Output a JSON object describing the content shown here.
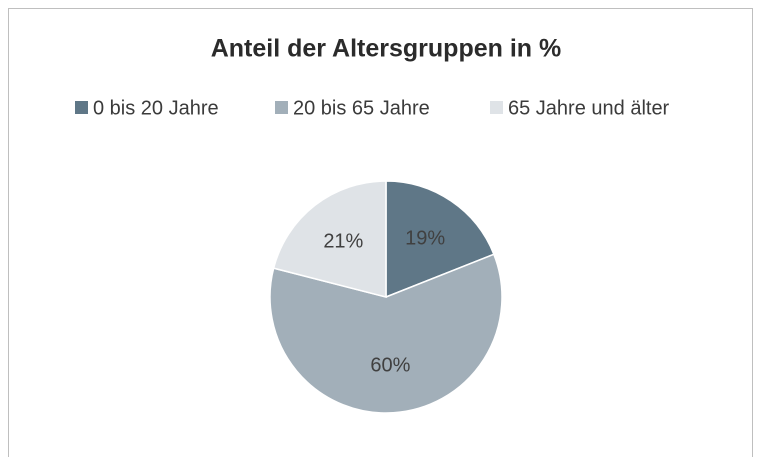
{
  "chart_data": {
    "type": "pie",
    "title": "Anteil der Altersgruppen in %",
    "categories": [
      "0 bis 20 Jahre",
      "20 bis 65 Jahre",
      "65 Jahre und älter"
    ],
    "values": [
      19,
      60,
      21
    ],
    "value_labels": [
      "19%",
      "60%",
      "21%"
    ],
    "colors": [
      "#5f7787",
      "#a2afb9",
      "#dfe3e7"
    ],
    "legend": "top"
  }
}
